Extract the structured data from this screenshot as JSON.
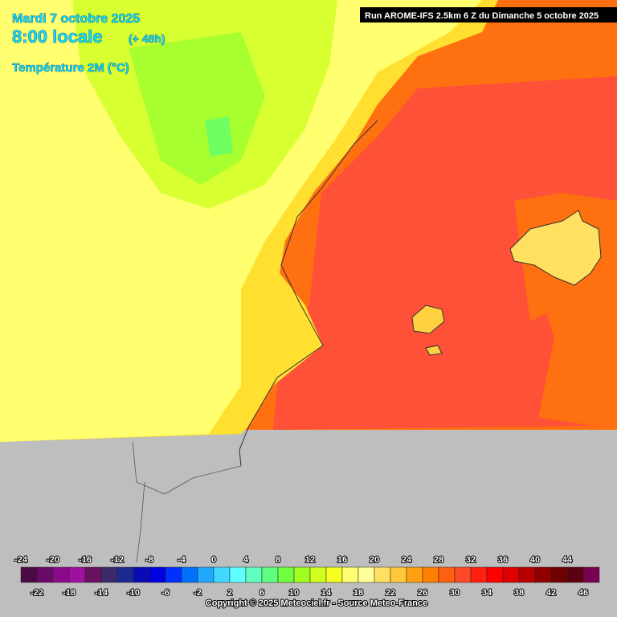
{
  "header": {
    "date": "Mardi 7 octobre 2025",
    "time": "8:00 locale",
    "lead": "(+ 48h)",
    "field": "Température 2M (°C)",
    "run": "Run AROME-IFS 2.5km 6 Z du Dimanche 5 octobre 2025"
  },
  "legend": {
    "range": [
      -24,
      48
    ],
    "colors": [
      "#4b0a46",
      "#6a0a68",
      "#8b0a8b",
      "#a010a0",
      "#6a1060",
      "#3a2a6a",
      "#1a2a90",
      "#0a0ab8",
      "#0000e0",
      "#0030ff",
      "#0070ff",
      "#20a8ff",
      "#40d8ff",
      "#60ffff",
      "#60ffc0",
      "#60ff80",
      "#70ff40",
      "#a0ff20",
      "#d0ff20",
      "#f8ff20",
      "#ffff70",
      "#ffff9a",
      "#ffe060",
      "#ffc838",
      "#ffa010",
      "#ff8000",
      "#ff6010",
      "#ff4828",
      "#ff2010",
      "#ff0000",
      "#e00000",
      "#b80000",
      "#900000",
      "#700000",
      "#5a0010",
      "#7a0050"
    ],
    "top_labels": [
      -24,
      -20,
      -16,
      -12,
      -8,
      -4,
      0,
      4,
      8,
      12,
      16,
      20,
      24,
      28,
      32,
      36,
      40,
      44
    ],
    "bottom_labels": [
      -22,
      -18,
      -14,
      -10,
      -6,
      -2,
      2,
      6,
      10,
      14,
      18,
      22,
      26,
      30,
      34,
      38,
      42,
      46
    ]
  },
  "footer": {
    "copyright": "Copyright © 2025 Meteociel.fr - Source Meteo-France"
  }
}
